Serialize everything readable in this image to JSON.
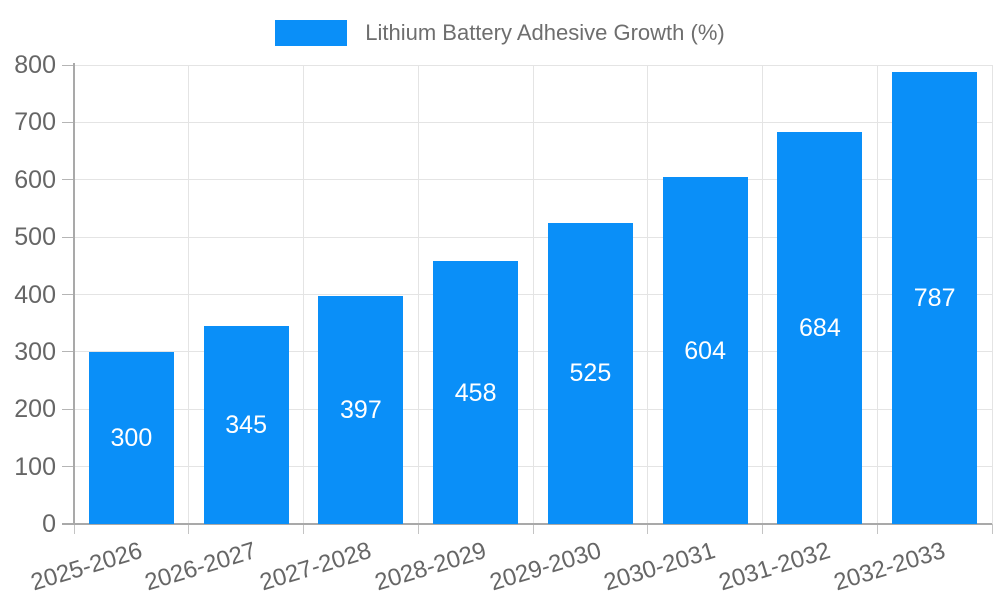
{
  "chart_data": {
    "type": "bar",
    "title": "Lithium Battery Adhesive Growth (%)",
    "categories": [
      "2025-2026",
      "2026-2027",
      "2027-2028",
      "2028-2029",
      "2029-2030",
      "2030-2031",
      "2031-2032",
      "2032-2033"
    ],
    "values": [
      300,
      345,
      397,
      458,
      525,
      604,
      684,
      787
    ],
    "value_labels": [
      "300",
      "345",
      "397",
      "458",
      "525",
      "604",
      "684",
      "787"
    ],
    "y_ticks": [
      "0",
      "100",
      "200",
      "300",
      "400",
      "500",
      "600",
      "700",
      "800"
    ],
    "ylim": [
      0,
      800
    ],
    "ytick_step": 100,
    "xlabel": "",
    "ylabel": "",
    "grid": true,
    "legend_position": "top-center",
    "colors": {
      "bar": "#0a8ff8",
      "grid": "#e4e4e4",
      "axis": "#a9a9a9",
      "tick_text": "#666666",
      "legend_text": "#6e6e6e",
      "value_text": "#ffffff"
    }
  }
}
